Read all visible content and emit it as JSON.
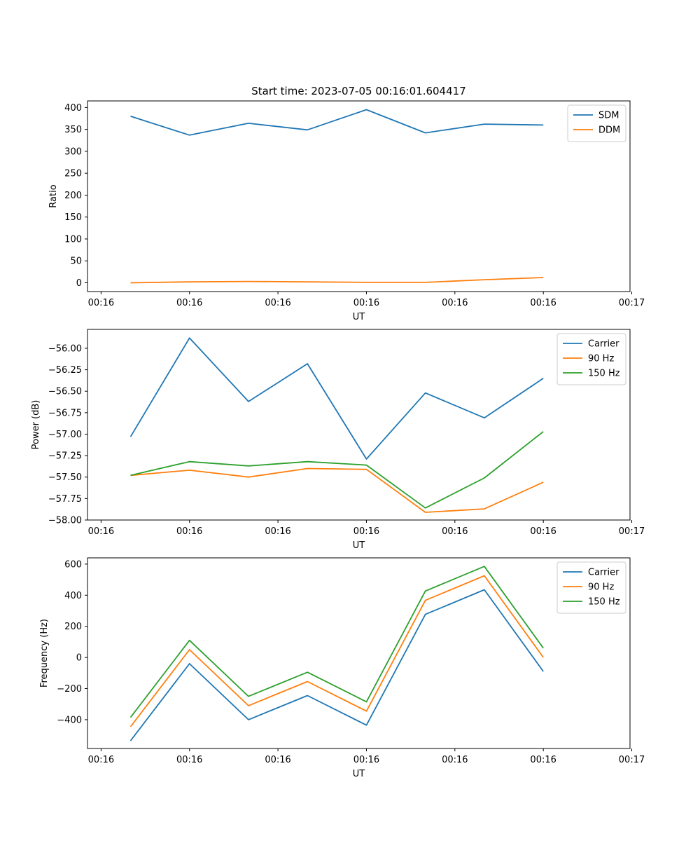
{
  "chart_data": [
    {
      "type": "line",
      "title": "Start time: 2023-07-05 00:16:01.604417",
      "xlabel": "UT",
      "ylabel": "Ratio",
      "x": [
        1,
        2,
        3,
        4,
        5,
        6,
        7,
        8
      ],
      "xlim": [
        0.27,
        9.47
      ],
      "xticks": [
        0.5,
        2,
        3.5,
        5,
        6.5,
        8,
        9.5
      ],
      "xtick_labels": [
        "00:16",
        "00:16",
        "00:16",
        "00:16",
        "00:16",
        "00:16",
        "00:17"
      ],
      "ylim": [
        -20,
        415
      ],
      "yticks": [
        0,
        50,
        100,
        150,
        200,
        250,
        300,
        350,
        400
      ],
      "ytick_labels": [
        "0",
        "50",
        "100",
        "150",
        "200",
        "250",
        "300",
        "350",
        "400"
      ],
      "legend_position": "top-right",
      "series": [
        {
          "name": "SDM",
          "color": "#1f77b4",
          "values": [
            380,
            337,
            364,
            349,
            395,
            342,
            362,
            360
          ]
        },
        {
          "name": "DDM",
          "color": "#ff7f0e",
          "values": [
            0,
            2,
            3,
            2,
            1,
            1,
            7,
            12
          ]
        }
      ]
    },
    {
      "type": "line",
      "xlabel": "UT",
      "ylabel": "Power (dB)",
      "x": [
        1,
        2,
        3,
        4,
        5,
        6,
        7,
        8
      ],
      "xlim": [
        0.27,
        9.47
      ],
      "xticks": [
        0.5,
        2,
        3.5,
        5,
        6.5,
        8,
        9.5
      ],
      "xtick_labels": [
        "00:16",
        "00:16",
        "00:16",
        "00:16",
        "00:16",
        "00:16",
        "00:17"
      ],
      "ylim": [
        -58.0,
        -55.78
      ],
      "yticks": [
        -58.0,
        -57.75,
        -57.5,
        -57.25,
        -57.0,
        -56.75,
        -56.5,
        -56.25,
        -56.0
      ],
      "ytick_labels": [
        "−58.00",
        "−57.75",
        "−57.50",
        "−57.25",
        "−57.00",
        "−56.75",
        "−56.50",
        "−56.25",
        "−56.00"
      ],
      "legend_position": "top-right",
      "series": [
        {
          "name": "Carrier",
          "color": "#1f77b4",
          "values": [
            -57.03,
            -55.88,
            -56.62,
            -56.18,
            -57.29,
            -56.52,
            -56.81,
            -56.35
          ]
        },
        {
          "name": "90 Hz",
          "color": "#ff7f0e",
          "values": [
            -57.48,
            -57.42,
            -57.5,
            -57.4,
            -57.41,
            -57.91,
            -57.87,
            -57.56
          ]
        },
        {
          "name": "150 Hz",
          "color": "#2ca02c",
          "values": [
            -57.48,
            -57.32,
            -57.37,
            -57.32,
            -57.36,
            -57.86,
            -57.51,
            -56.97
          ]
        }
      ]
    },
    {
      "type": "line",
      "xlabel": "UT",
      "ylabel": "Frequency (Hz)",
      "x": [
        1,
        2,
        3,
        4,
        5,
        6,
        7,
        8
      ],
      "xlim": [
        0.27,
        9.47
      ],
      "xticks": [
        0.5,
        2,
        3.5,
        5,
        6.5,
        8,
        9.5
      ],
      "xtick_labels": [
        "00:16",
        "00:16",
        "00:16",
        "00:16",
        "00:16",
        "00:16",
        "00:17"
      ],
      "ylim": [
        -585,
        640
      ],
      "yticks": [
        -400,
        -200,
        0,
        200,
        400,
        600
      ],
      "ytick_labels": [
        "−400",
        "−200",
        "0",
        "200",
        "400",
        "600"
      ],
      "legend_position": "top-right",
      "series": [
        {
          "name": "Carrier",
          "color": "#1f77b4",
          "values": [
            -535,
            -40,
            -400,
            -245,
            -435,
            277,
            435,
            -90
          ]
        },
        {
          "name": "90 Hz",
          "color": "#ff7f0e",
          "values": [
            -445,
            50,
            -310,
            -155,
            -345,
            367,
            525,
            0
          ]
        },
        {
          "name": "150 Hz",
          "color": "#2ca02c",
          "values": [
            -385,
            110,
            -250,
            -95,
            -285,
            427,
            585,
            60
          ]
        }
      ]
    }
  ]
}
